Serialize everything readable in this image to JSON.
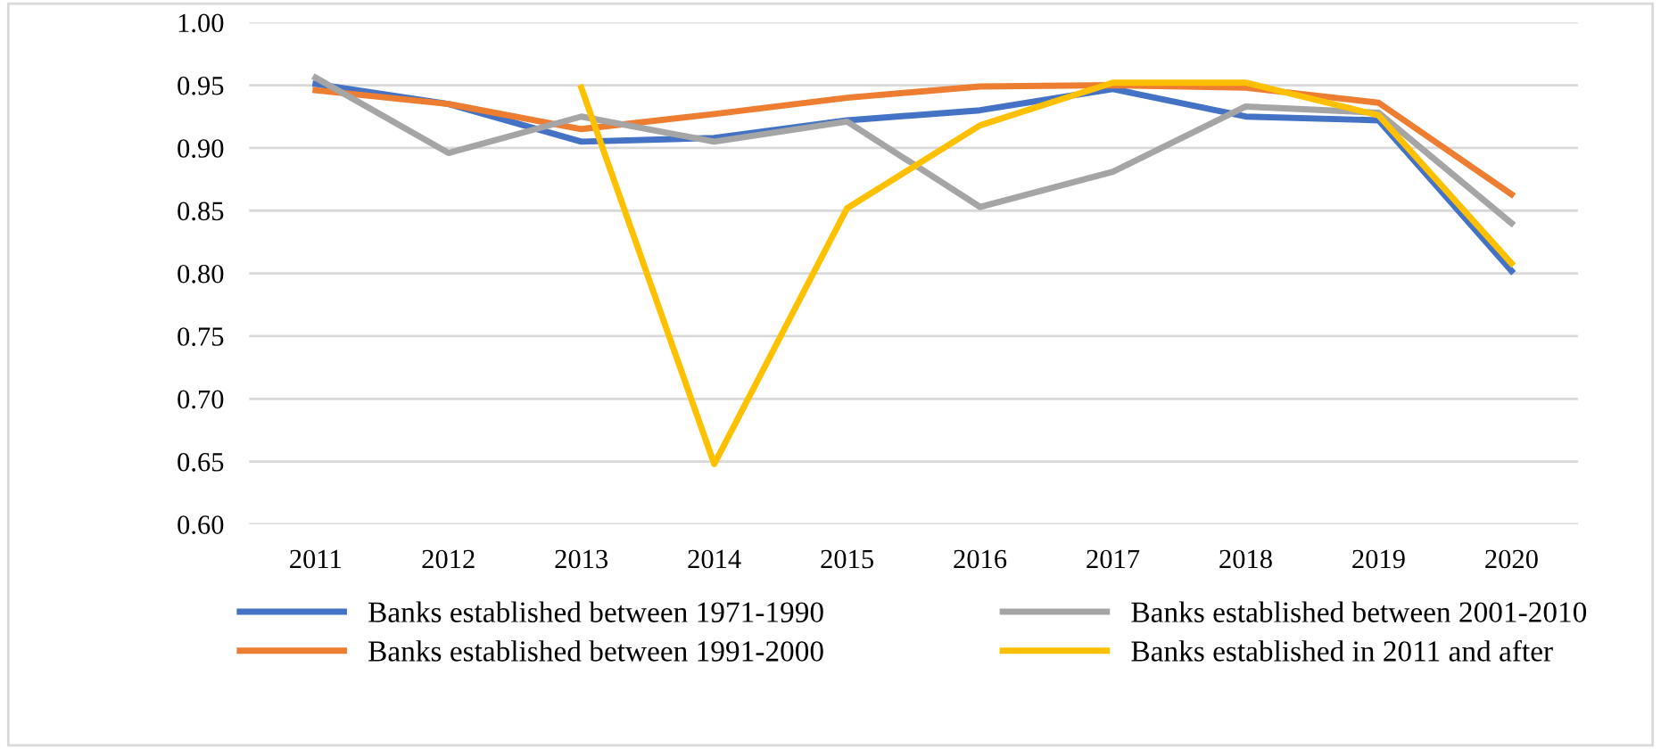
{
  "chart_data": {
    "type": "line",
    "categories": [
      "2011",
      "2012",
      "2013",
      "2014",
      "2015",
      "2016",
      "2017",
      "2018",
      "2019",
      "2020"
    ],
    "ylim": [
      0.6,
      1.0
    ],
    "yticks": [
      {
        "value": 0.6,
        "label": "0.60"
      },
      {
        "value": 0.65,
        "label": "0.65"
      },
      {
        "value": 0.7,
        "label": "0.70"
      },
      {
        "value": 0.75,
        "label": "0.75"
      },
      {
        "value": 0.8,
        "label": "0.80"
      },
      {
        "value": 0.85,
        "label": "0.85"
      },
      {
        "value": 0.9,
        "label": "0.90"
      },
      {
        "value": 0.95,
        "label": "0.95"
      },
      {
        "value": 1.0,
        "label": "1.00"
      }
    ],
    "grid": "y",
    "legend": "bottom",
    "marker": "none",
    "line_style": "solid",
    "series": [
      {
        "name": "Banks established between 1971-1990",
        "color": "#4472c4",
        "values": [
          0.951,
          0.935,
          0.905,
          0.908,
          0.922,
          0.93,
          0.947,
          0.925,
          0.922,
          0.802
        ]
      },
      {
        "name": "Banks established between 1991-2000",
        "color": "#ed7d31",
        "values": [
          0.946,
          0.935,
          0.915,
          0.927,
          0.94,
          0.949,
          0.95,
          0.948,
          0.936,
          0.863
        ]
      },
      {
        "name": "Banks established between 2001-2010",
        "color": "#a5a5a5",
        "values": [
          0.956,
          0.896,
          0.925,
          0.905,
          0.921,
          0.853,
          0.881,
          0.933,
          0.928,
          0.84
        ]
      },
      {
        "name": "Banks established in 2011 and after",
        "color": "#ffc000",
        "values": [
          null,
          null,
          0.948,
          0.648,
          0.852,
          0.918,
          0.952,
          0.952,
          0.926,
          0.808
        ]
      }
    ]
  }
}
